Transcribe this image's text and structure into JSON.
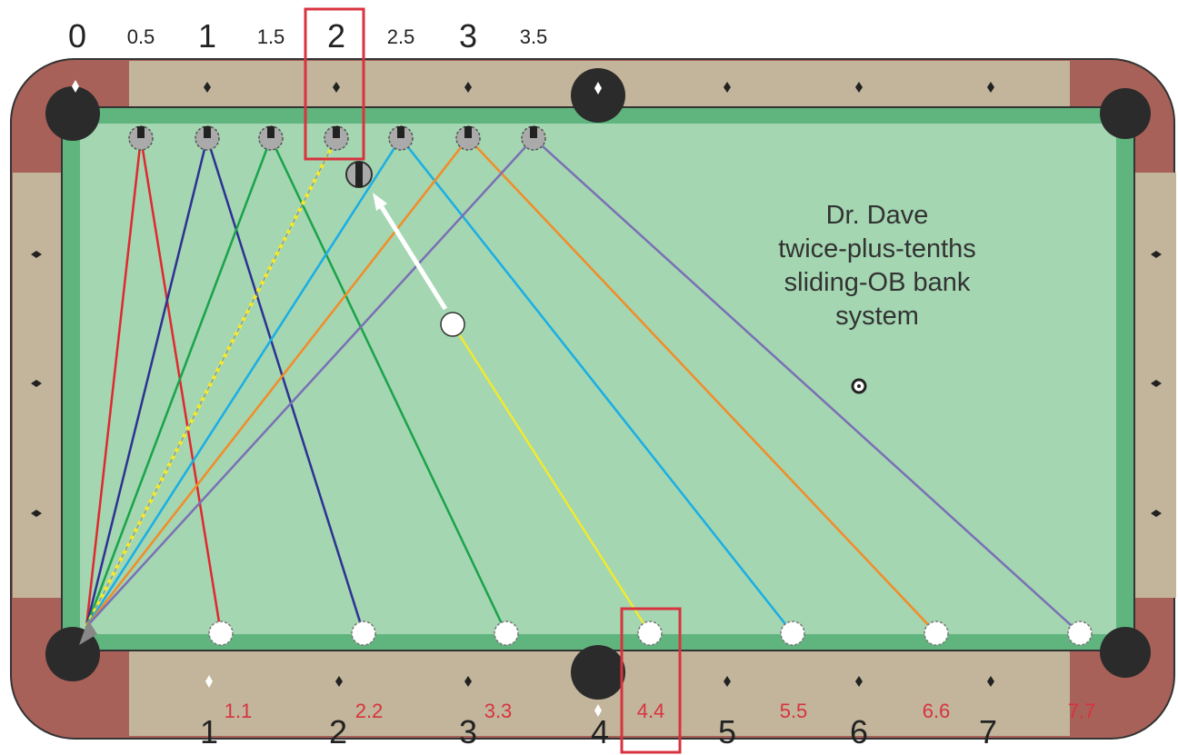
{
  "top_labels": [
    "0",
    "0.5",
    "1",
    "1.5",
    "2",
    "2.5",
    "3",
    "3.5"
  ],
  "bottom_labels": [
    "1",
    "2",
    "3",
    "4",
    "5",
    "6",
    "7"
  ],
  "bottom_sublabels": [
    "1.1",
    "2.2",
    "3.3",
    "4.4",
    "5.5",
    "6.6",
    "7.7"
  ],
  "title_lines": [
    "Dr. Dave",
    "twice-plus-tenths",
    "sliding-OB bank",
    "system"
  ]
}
